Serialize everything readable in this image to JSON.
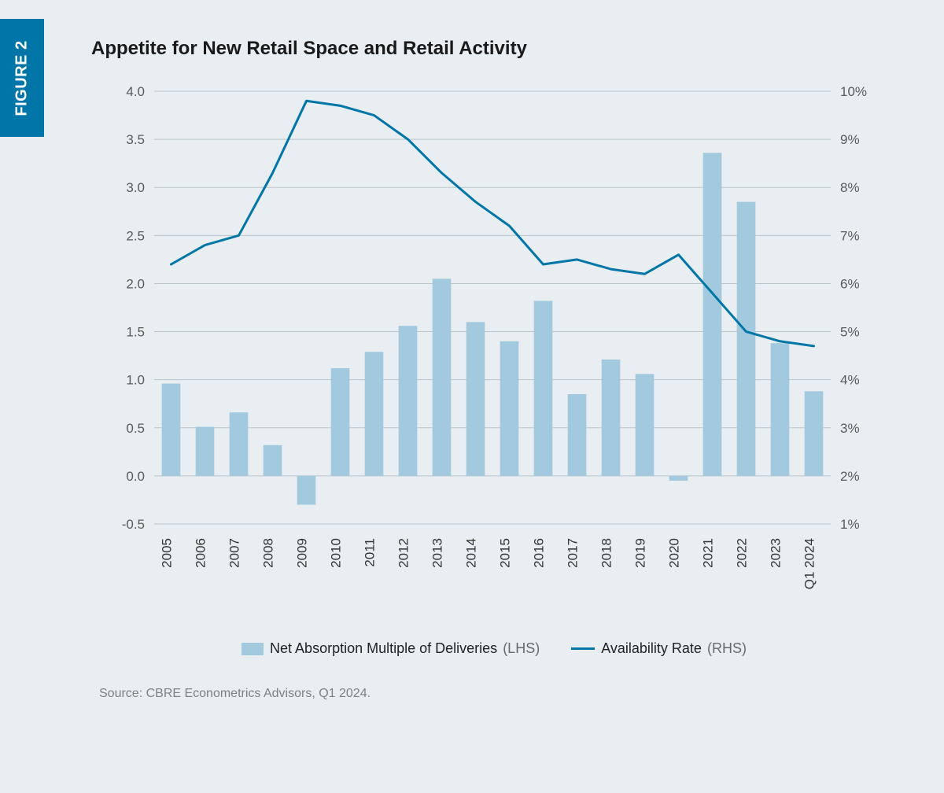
{
  "figure_tab": "FIGURE 2",
  "title": "Appetite for New Retail Space and Retail Activity",
  "source": "Source: CBRE Econometrics Advisors, Q1 2024.",
  "legend": {
    "bar_label": "Net Absorption Multiple of Deliveries",
    "bar_paren": "(LHS)",
    "line_label": "Availability Rate",
    "line_paren": "(RHS)"
  },
  "chart": {
    "type": "bar+line",
    "categories": [
      "2005",
      "2006",
      "2007",
      "2008",
      "2009",
      "2010",
      "2011",
      "2012",
      "2013",
      "2014",
      "2015",
      "2016",
      "2017",
      "2018",
      "2019",
      "2020",
      "2021",
      "2022",
      "2023",
      "Q1 2024"
    ],
    "bar_values": [
      0.96,
      0.51,
      0.66,
      0.32,
      -0.3,
      1.12,
      1.29,
      1.56,
      2.05,
      1.6,
      1.4,
      1.82,
      0.85,
      1.21,
      1.06,
      -0.05,
      3.36,
      2.85,
      1.38,
      0.88
    ],
    "line_values_pct": [
      6.4,
      6.8,
      7.0,
      8.3,
      9.8,
      9.7,
      9.5,
      9.0,
      8.3,
      7.7,
      7.2,
      6.4,
      6.5,
      6.3,
      6.2,
      6.6,
      5.8,
      5.0,
      4.8,
      4.7
    ],
    "y_left": {
      "min": -0.5,
      "max": 4.0,
      "ticks": [
        -0.5,
        0.0,
        0.5,
        1.0,
        1.5,
        2.0,
        2.5,
        3.0,
        3.5,
        4.0
      ]
    },
    "y_right": {
      "min": 1,
      "max": 10,
      "ticks": [
        1,
        2,
        3,
        4,
        5,
        6,
        7,
        8,
        9,
        10
      ],
      "suffix": "%"
    },
    "colors": {
      "background": "#e8eef2",
      "bar": "#a3c9de",
      "line": "#0076a8",
      "grid": "#b9c5cd",
      "axis_text": "#5a5a5a",
      "title": "#1a1a1a",
      "tab_bg": "#0076a8",
      "tab_text": "#ffffff",
      "source_text": "#7a8288"
    },
    "bar_width_ratio": 0.55,
    "line_width": 3,
    "tick_fontsize": 17,
    "xlabel_fontsize": 17,
    "label_rotation": -90
  }
}
